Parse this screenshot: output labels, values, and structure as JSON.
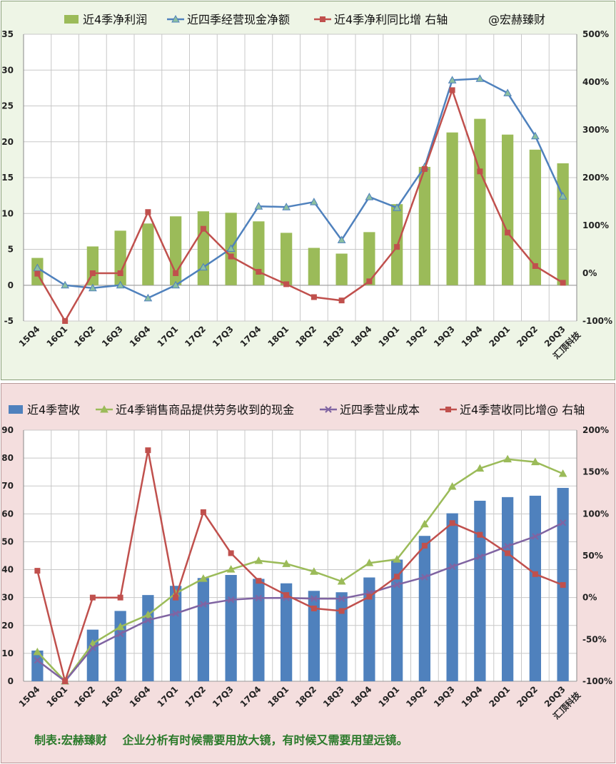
{
  "chart_data": [
    {
      "type": "bar+line",
      "legend": [
        {
          "name": "近4季净利润",
          "kind": "bar",
          "color": "#9bbb59"
        },
        {
          "name": "近四季经营现金净额",
          "kind": "line",
          "color": "#4f81bd"
        },
        {
          "name": "近4季净利同比增 右轴",
          "kind": "line",
          "color": "#c0504d"
        }
      ],
      "legend_note": "@宏赫臻财",
      "watermark": "汇顶科技",
      "categories": [
        "15Q4",
        "16Q1",
        "16Q2",
        "16Q3",
        "16Q4",
        "17Q1",
        "17Q2",
        "17Q3",
        "17Q4",
        "18Q1",
        "18Q2",
        "18Q3",
        "18Q4",
        "19Q1",
        "19Q2",
        "19Q3",
        "19Q4",
        "20Q1",
        "20Q2",
        "20Q3"
      ],
      "left_axis": {
        "min": -5,
        "max": 35,
        "ticks": [
          "-5",
          "0",
          "5",
          "10",
          "15",
          "20",
          "25",
          "30",
          "35"
        ]
      },
      "right_axis": {
        "min": -100,
        "max": 500,
        "ticks": [
          "-100%",
          "0%",
          "100%",
          "200%",
          "300%",
          "400%",
          "500%"
        ]
      },
      "series": [
        {
          "name": "近4季净利润",
          "axis": "left",
          "values": [
            3.8,
            null,
            5.4,
            7.6,
            8.6,
            9.6,
            10.3,
            10.1,
            8.9,
            7.3,
            5.2,
            4.4,
            7.4,
            11.3,
            16.5,
            21.3,
            23.2,
            21.0,
            18.9,
            17.0
          ]
        },
        {
          "name": "近四季经营现金净额",
          "axis": "left",
          "values": [
            2.4,
            0.0,
            -0.4,
            0.0,
            -1.8,
            0.0,
            2.5,
            5.1,
            11.0,
            10.9,
            11.6,
            6.3,
            12.3,
            10.8,
            16.5,
            28.6,
            28.8,
            26.8,
            20.8,
            12.4
          ]
        },
        {
          "name": "近4季净利同比增 右轴",
          "axis": "right",
          "values": [
            -1,
            -100,
            0,
            0,
            128,
            0,
            93,
            35,
            3,
            -23,
            -50,
            -57,
            -17,
            55,
            218,
            383,
            213,
            85,
            15,
            -20
          ]
        }
      ]
    },
    {
      "type": "bar+line",
      "legend": [
        {
          "name": "近4季营收",
          "kind": "bar",
          "color": "#4f81bd"
        },
        {
          "name": "近4季销售商品提供劳务收到的现金",
          "kind": "line",
          "color": "#9bbb59"
        },
        {
          "name": "近四季营业成本",
          "kind": "line",
          "color": "#8064a2"
        },
        {
          "name": "近4季营收同比增@ 右轴",
          "kind": "line",
          "color": "#c0504d"
        }
      ],
      "watermark": "汇顶科技",
      "categories": [
        "15Q4",
        "16Q1",
        "16Q2",
        "16Q3",
        "16Q4",
        "17Q1",
        "17Q2",
        "17Q3",
        "17Q4",
        "18Q1",
        "18Q2",
        "18Q3",
        "18Q4",
        "19Q1",
        "19Q2",
        "19Q3",
        "19Q4",
        "20Q1",
        "20Q2",
        "20Q3"
      ],
      "left_axis": {
        "min": 0,
        "max": 90,
        "ticks": [
          "0",
          "10",
          "20",
          "30",
          "40",
          "50",
          "60",
          "70",
          "80",
          "90"
        ]
      },
      "right_axis": {
        "min": -100,
        "max": 200,
        "ticks": [
          "-100%",
          "-50%",
          "0%",
          "50%",
          "100%",
          "150%",
          "200%"
        ]
      },
      "series": [
        {
          "name": "近4季营收",
          "axis": "left",
          "values": [
            11.0,
            null,
            18.5,
            25.2,
            30.9,
            34.2,
            37.0,
            38.1,
            36.7,
            35.1,
            32.4,
            31.9,
            37.2,
            43.6,
            52.1,
            60.2,
            64.7,
            66.0,
            66.5,
            69.3
          ]
        },
        {
          "name": "近4季销售商品提供劳务收到的现金",
          "axis": "left",
          "values": [
            10.5,
            0.0,
            13.5,
            19.5,
            23.8,
            31.5,
            36.8,
            40.1,
            43.2,
            42.1,
            39.3,
            35.8,
            42.4,
            43.7,
            56.3,
            69.8,
            76.3,
            79.6,
            78.6,
            74.4
          ]
        },
        {
          "name": "近四季营业成本",
          "axis": "left",
          "values": [
            7.5,
            0.0,
            12.0,
            17.0,
            21.9,
            24.3,
            27.6,
            29.2,
            29.8,
            29.9,
            29.6,
            29.6,
            31.6,
            34.6,
            37.3,
            41.1,
            44.6,
            48.4,
            51.9,
            56.8
          ]
        },
        {
          "name": "近4季营收同比增@ 右轴",
          "axis": "right",
          "values": [
            32,
            -100,
            0,
            0,
            176,
            0,
            102,
            53,
            20,
            3,
            -13,
            -16,
            1,
            25,
            62,
            89,
            75,
            53,
            28,
            15
          ]
        }
      ]
    }
  ],
  "footer": "制表:宏赫臻财　 企业分析有时候需要用放大镜，有时候又需要用望远镜。"
}
